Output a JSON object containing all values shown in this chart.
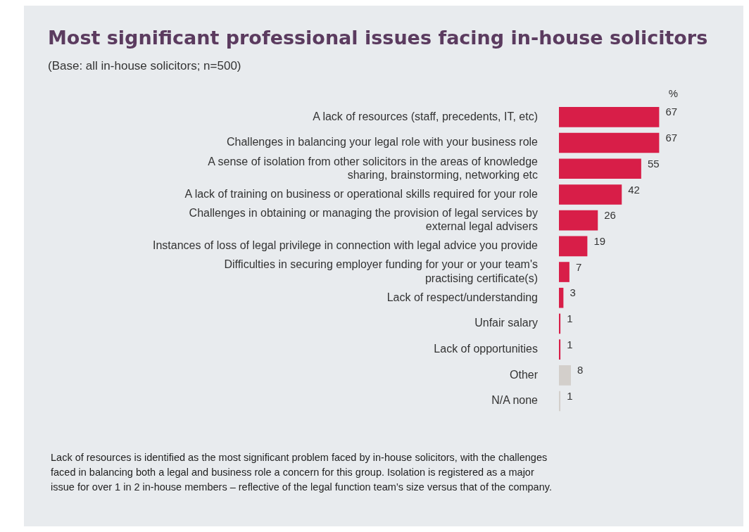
{
  "chart_data": {
    "type": "bar",
    "orientation": "horizontal",
    "title": "Most significant professional issues facing in-house solicitors",
    "subtitle": "(Base: all in-house solicitors; n=500)",
    "categories": [
      "A lack of resources (staff, precedents, IT, etc)",
      "Challenges in balancing your legal role with your business role",
      "A sense of isolation from other solicitors in the areas of knowledge sharing, brainstorming, networking etc",
      "A lack of training on business or operational skills required for your role",
      "Challenges in obtaining or managing the provision of legal services by external legal advisers",
      "Instances of loss of legal privilege in connection with legal advice you provide",
      "Difficulties in securing employer funding for your or your team's practising certificate(s)",
      "Lack of respect/understanding",
      "Unfair salary",
      "Lack of opportunities",
      "Other",
      "N/A none"
    ],
    "values": [
      67,
      67,
      55,
      42,
      26,
      19,
      7,
      3,
      1,
      1,
      8,
      1
    ],
    "colors": [
      "#d81e48",
      "#d81e48",
      "#d81e48",
      "#d81e48",
      "#d81e48",
      "#d81e48",
      "#d81e48",
      "#d81e48",
      "#d81e48",
      "#d81e48",
      "#d3cfcb",
      "#d3cfcb"
    ],
    "data_labels": true,
    "grid": false,
    "legend": false,
    "annotations": [
      "%",
      "Lack of resources is identified as the most significant problem faced by in-house solicitors, with the challenges faced in balancing both a legal and business role a concern for this group. Isolation is registered as a major issue for over 1 in 2 in-house members – reflective of the legal function team’s size versus that of the company."
    ]
  }
}
